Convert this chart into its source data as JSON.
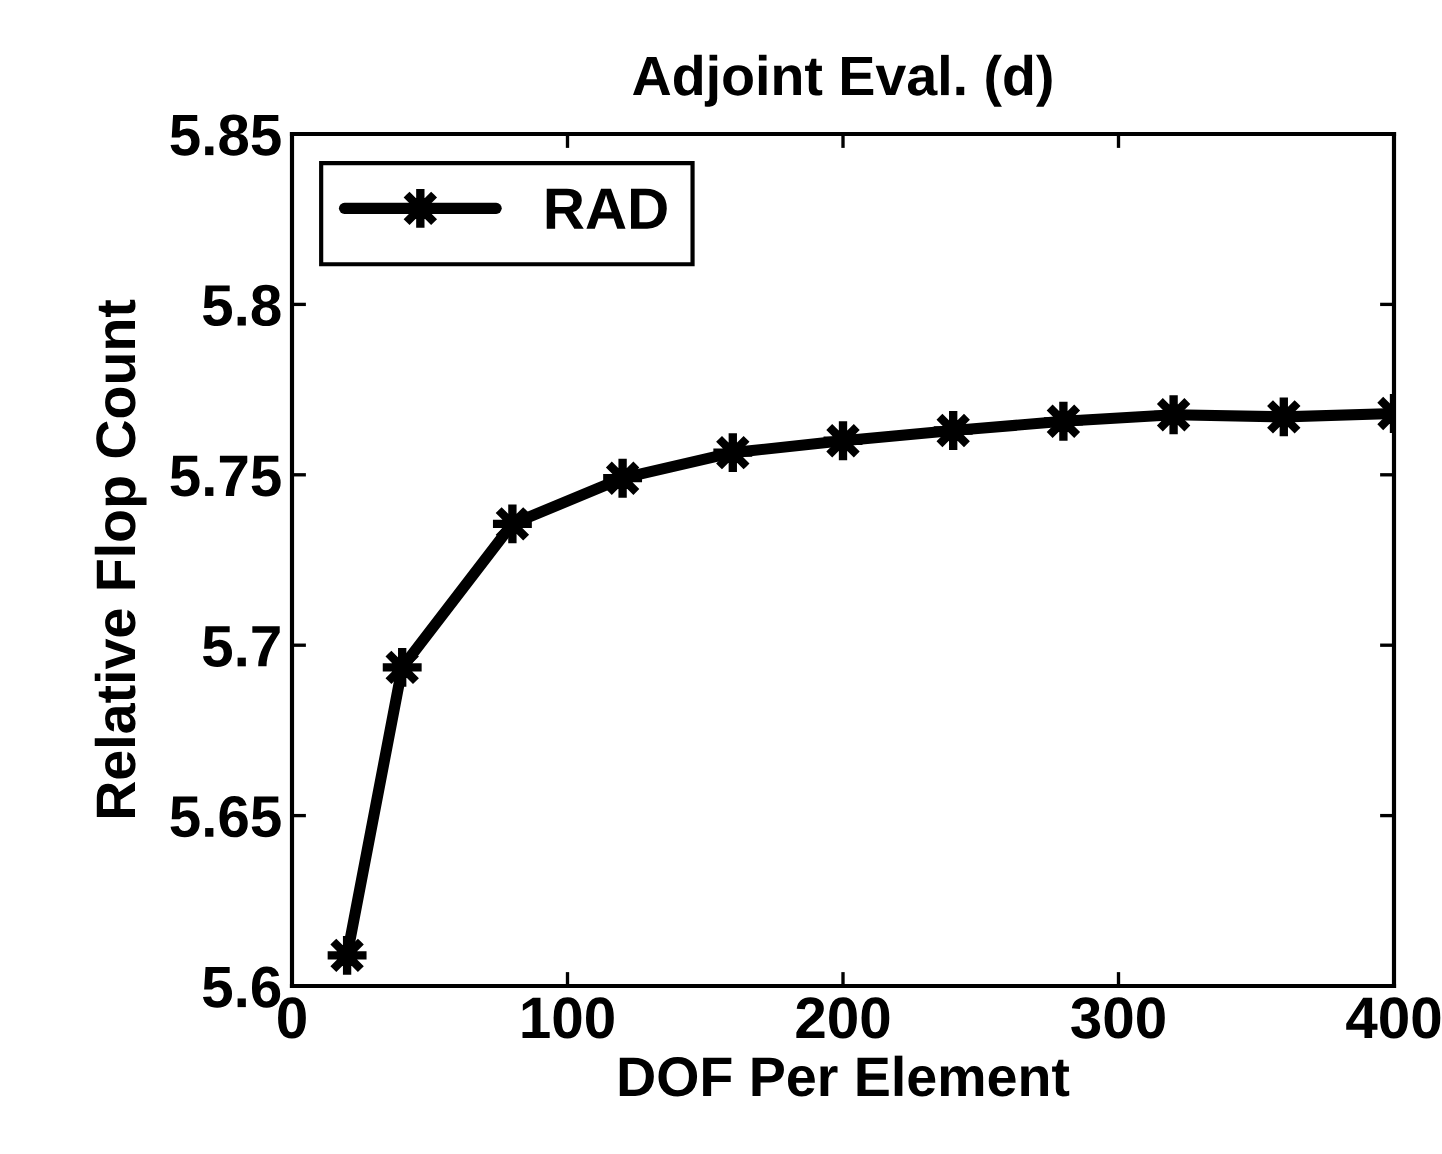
{
  "chart_data": {
    "type": "line",
    "title": "Adjoint Eval. (d)",
    "xlabel": "DOF Per Element",
    "ylabel": "Relative Flop Count",
    "x": [
      20,
      40,
      80,
      120,
      160,
      200,
      240,
      280,
      320,
      360,
      400
    ],
    "series": [
      {
        "name": "RAD",
        "color": "#000000",
        "values": [
          5.609,
          5.6935,
          5.7356,
          5.749,
          5.7565,
          5.76,
          5.763,
          5.7657,
          5.7676,
          5.767,
          5.768
        ]
      }
    ],
    "xlim": [
      0,
      400
    ],
    "xticks": [
      0,
      100,
      200,
      300,
      400
    ],
    "ylim": [
      5.6,
      5.85
    ],
    "yticks": [
      5.6,
      5.65,
      5.7,
      5.75,
      5.8,
      5.85
    ],
    "marker": "star",
    "line_style": "solid",
    "legend": "top left",
    "grid": false
  }
}
